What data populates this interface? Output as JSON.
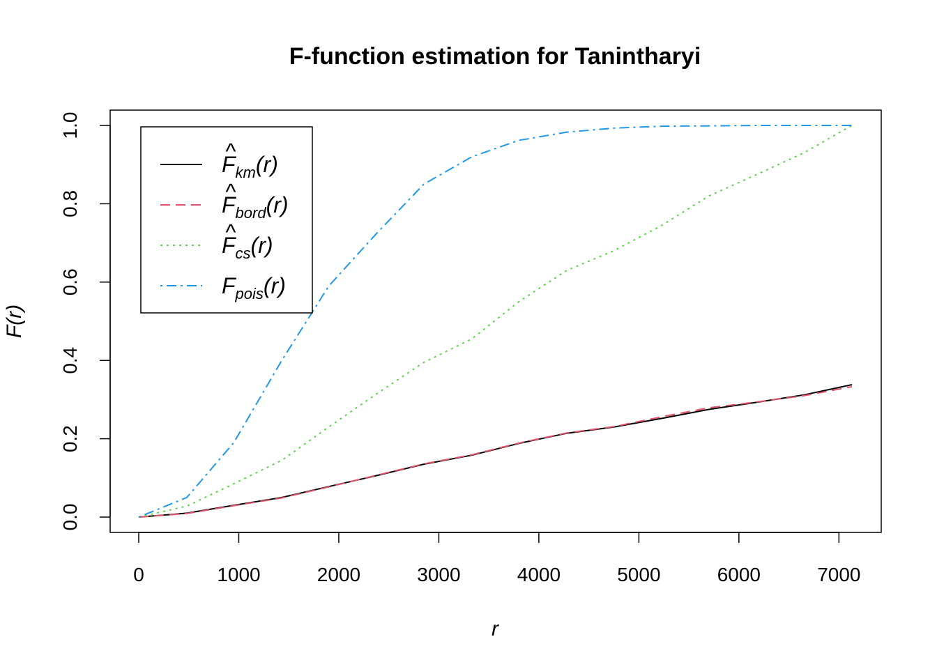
{
  "chart_data": {
    "type": "line",
    "title": "F-function estimation for Tanintharyi",
    "xlabel": "r",
    "ylabel": "F(r)",
    "xlim": [
      0,
      7150
    ],
    "ylim": [
      0,
      1
    ],
    "xticks": [
      0,
      1000,
      2000,
      3000,
      4000,
      5000,
      6000,
      7000
    ],
    "yticks": [
      0.0,
      0.2,
      0.4,
      0.6,
      0.8,
      1.0
    ],
    "xtick_labels": [
      "0",
      "1000",
      "2000",
      "3000",
      "4000",
      "5000",
      "6000",
      "7000"
    ],
    "ytick_labels": [
      "0.0",
      "0.2",
      "0.4",
      "0.6",
      "0.8",
      "1.0"
    ],
    "legend_position": "top-left",
    "grid": false,
    "x": [
      0,
      480,
      950,
      1430,
      1900,
      2380,
      2850,
      3330,
      3800,
      4280,
      4750,
      5230,
      5700,
      6180,
      6650,
      7130
    ],
    "series": [
      {
        "key": "km",
        "label_base": "F",
        "label_hat": "^",
        "label_sub": "km",
        "label_arg": "(r)",
        "color": "#000000",
        "dash": "",
        "values": [
          0.0,
          0.01,
          0.03,
          0.05,
          0.078,
          0.106,
          0.135,
          0.158,
          0.188,
          0.214,
          0.23,
          0.252,
          0.275,
          0.293,
          0.312,
          0.338
        ]
      },
      {
        "key": "bord",
        "label_base": "F",
        "label_hat": "^",
        "label_sub": "bord",
        "label_arg": "(r)",
        "color": "#DF536B",
        "dash": "14,8",
        "values": [
          0.0,
          0.009,
          0.029,
          0.049,
          0.077,
          0.107,
          0.136,
          0.159,
          0.189,
          0.215,
          0.231,
          0.256,
          0.279,
          0.294,
          0.31,
          0.333
        ]
      },
      {
        "key": "cs",
        "label_base": "F",
        "label_hat": "^",
        "label_sub": "cs",
        "label_arg": "(r)",
        "color": "#61D04F",
        "dash": "3,6",
        "values": [
          0.0,
          0.028,
          0.085,
          0.145,
          0.23,
          0.315,
          0.395,
          0.455,
          0.55,
          0.63,
          0.68,
          0.745,
          0.82,
          0.875,
          0.93,
          1.0
        ]
      },
      {
        "key": "pois",
        "label_base": "F",
        "label_hat": "",
        "label_sub": "pois",
        "label_arg": "(r)",
        "color": "#2297E6",
        "dash": "3,6,14,6",
        "values": [
          0.0,
          0.05,
          0.19,
          0.4,
          0.59,
          0.725,
          0.85,
          0.92,
          0.962,
          0.983,
          0.993,
          0.998,
          0.999,
          1.0,
          1.0,
          1.0
        ]
      }
    ]
  }
}
